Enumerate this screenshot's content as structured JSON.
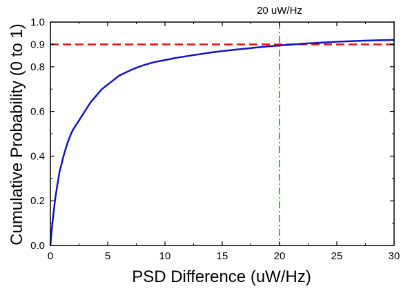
{
  "chart_data": {
    "type": "line",
    "xlabel": "PSD Difference (uW/Hz)",
    "ylabel": "Cumulative Probability (0 to 1)",
    "xlim": [
      0,
      30
    ],
    "ylim": [
      0,
      1.0
    ],
    "x_ticks": [
      "0",
      "5",
      "10",
      "15",
      "20",
      "25",
      "30"
    ],
    "y_ticks": [
      "0.0",
      "0.2",
      "0.4",
      "0.6",
      "0.8",
      "0.9",
      "1.0"
    ],
    "grid": false,
    "legend": "none",
    "series": [
      {
        "color": "#1010cc",
        "x": [
          0,
          0.1,
          0.2,
          0.4,
          0.6,
          0.8,
          1.0,
          1.2,
          1.5,
          1.8,
          2.0,
          2.5,
          3.0,
          3.5,
          4.0,
          4.5,
          5.0,
          5.5,
          6.0,
          7.0,
          8.0,
          9.0,
          10.0,
          11.0,
          12.0,
          13.0,
          14.0,
          15.0,
          16.0,
          17.0,
          18.0,
          19.0,
          20.0,
          21.0,
          22.0,
          23.0,
          24.0,
          25.0,
          26.0,
          27.0,
          28.0,
          29.0,
          30.0
        ],
        "y": [
          0.0,
          0.06,
          0.11,
          0.2,
          0.27,
          0.33,
          0.37,
          0.41,
          0.46,
          0.5,
          0.52,
          0.56,
          0.6,
          0.64,
          0.67,
          0.7,
          0.72,
          0.74,
          0.76,
          0.785,
          0.805,
          0.82,
          0.83,
          0.84,
          0.848,
          0.856,
          0.864,
          0.87,
          0.876,
          0.881,
          0.886,
          0.891,
          0.895,
          0.899,
          0.903,
          0.906,
          0.909,
          0.912,
          0.914,
          0.916,
          0.918,
          0.919,
          0.92
        ]
      }
    ],
    "reference_lines": [
      {
        "orientation": "horizontal",
        "value": 0.9,
        "color": "#ee1111",
        "style": "dashed"
      },
      {
        "orientation": "vertical",
        "value": 20,
        "color": "#22cc22",
        "style": "dash-dot",
        "label": "20 uW/Hz"
      }
    ]
  }
}
